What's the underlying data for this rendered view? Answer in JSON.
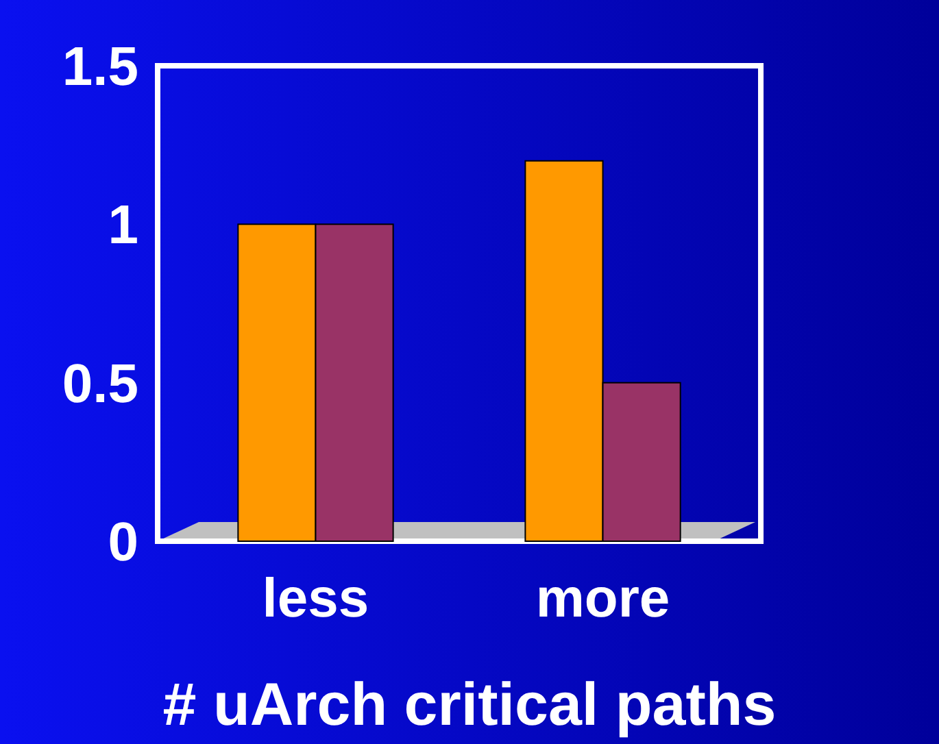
{
  "chart_data": {
    "type": "bar",
    "xlabel": "# uArch critical paths",
    "categories": [
      "less",
      "more"
    ],
    "series": [
      {
        "color": "#ff9900",
        "values": [
          1.0,
          1.2
        ]
      },
      {
        "color": "#993366",
        "values": [
          1.0,
          0.5
        ]
      }
    ],
    "ylim": [
      0,
      1.5
    ],
    "yticks": [
      0,
      0.5,
      1,
      1.5
    ],
    "grid": false
  }
}
